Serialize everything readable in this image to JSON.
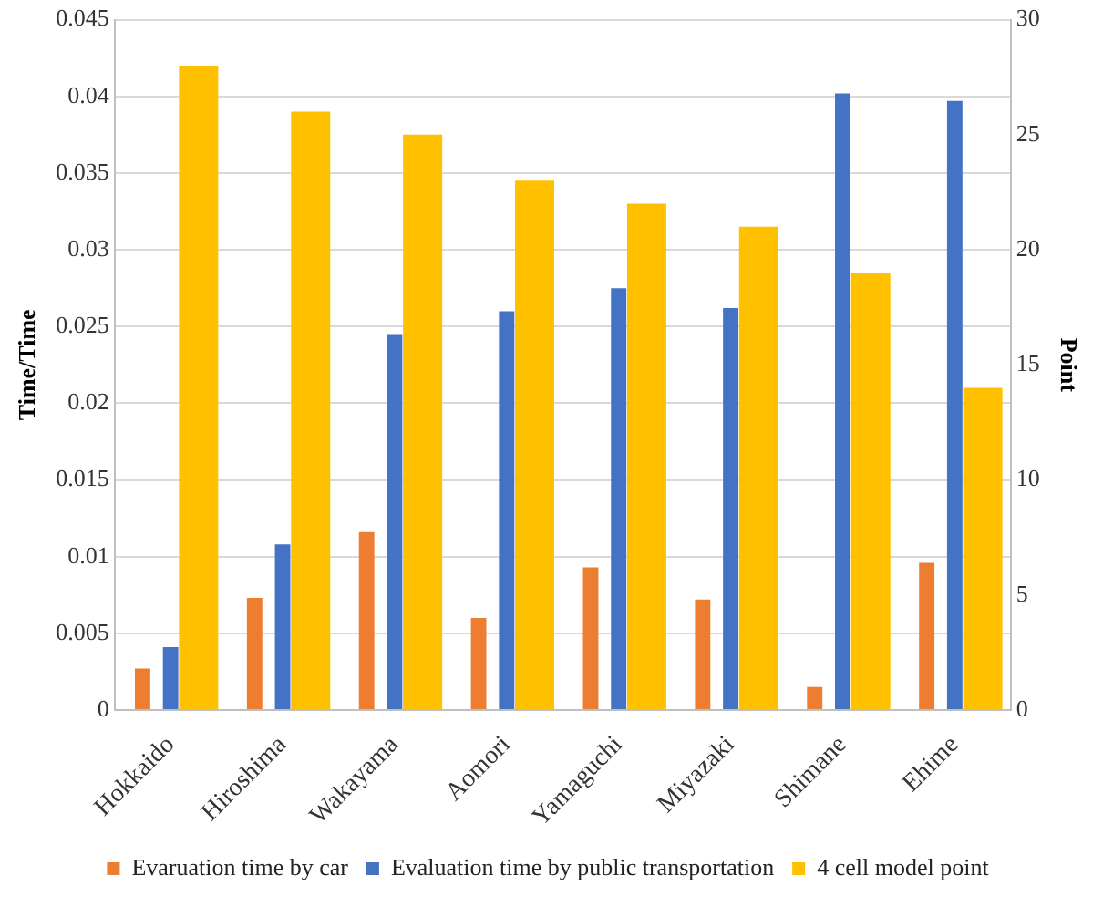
{
  "chart_data": {
    "type": "bar",
    "ylabel": "Time/Time",
    "y2label": "Point",
    "categories": [
      "Hokkaido",
      "Hiroshima",
      "Wakayama",
      "Aomori",
      "Yamaguchi",
      "Miyazaki",
      "Shimane",
      "Ehime"
    ],
    "series": [
      {
        "name": "Evaruation time by car",
        "color": "#ed7d31",
        "values": [
          0.0027,
          0.0073,
          0.0116,
          0.006,
          0.0093,
          0.0072,
          0.0015,
          0.0096
        ]
      },
      {
        "name": "Evaluation time by public transportation",
        "color": "#4472c4",
        "values": [
          0.0041,
          0.0108,
          0.0245,
          0.026,
          0.0275,
          0.0262,
          0.0402,
          0.0397
        ]
      },
      {
        "name": "4 cell model point",
        "color": "#ffc000",
        "axis": "y2",
        "values": [
          28,
          26,
          25,
          23,
          22,
          21,
          19,
          14
        ]
      }
    ],
    "ylim": [
      0,
      0.045
    ],
    "yticks": [
      0,
      0.005,
      0.01,
      0.015,
      0.02,
      0.025,
      0.03,
      0.035,
      0.04,
      0.045
    ],
    "y2lim": [
      0,
      30
    ],
    "y2ticks": [
      0,
      5,
      10,
      15,
      20,
      25,
      30
    ],
    "grid": "y",
    "legend": "bottom"
  }
}
